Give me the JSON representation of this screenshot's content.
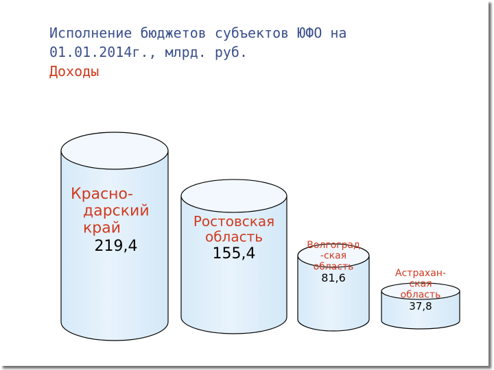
{
  "slide": {
    "title_line1": "Исполнение бюджетов субъектов ЮФО на",
    "title_line2": "01.01.2014г., млрд. руб.",
    "subtitle": "Доходы"
  },
  "colors": {
    "title": "#3b4f8c",
    "subtitle": "#d03a1f",
    "label": "#d03a1f",
    "value": "#000000",
    "cylinder_fill": "#e8f3fc",
    "cylinder_stroke": "#000000"
  },
  "chart_data": {
    "type": "bar",
    "title": "Исполнение бюджетов субъектов ЮФО на 01.01.2014г., млрд. руб.",
    "subtitle": "Доходы",
    "unit": "млрд. руб.",
    "categories": [
      [
        "Красно-",
        "дарский",
        "край"
      ],
      [
        "Ростовская",
        "область"
      ],
      [
        "Волгоград",
        "-ская",
        "область"
      ],
      [
        "Астрахан-",
        "ская",
        "область"
      ]
    ],
    "values": [
      219.4,
      155.4,
      81.6,
      37.8
    ],
    "value_labels": [
      "219,4",
      "155,4",
      "81,6",
      "37,8"
    ],
    "grid": false,
    "legend": "none"
  }
}
